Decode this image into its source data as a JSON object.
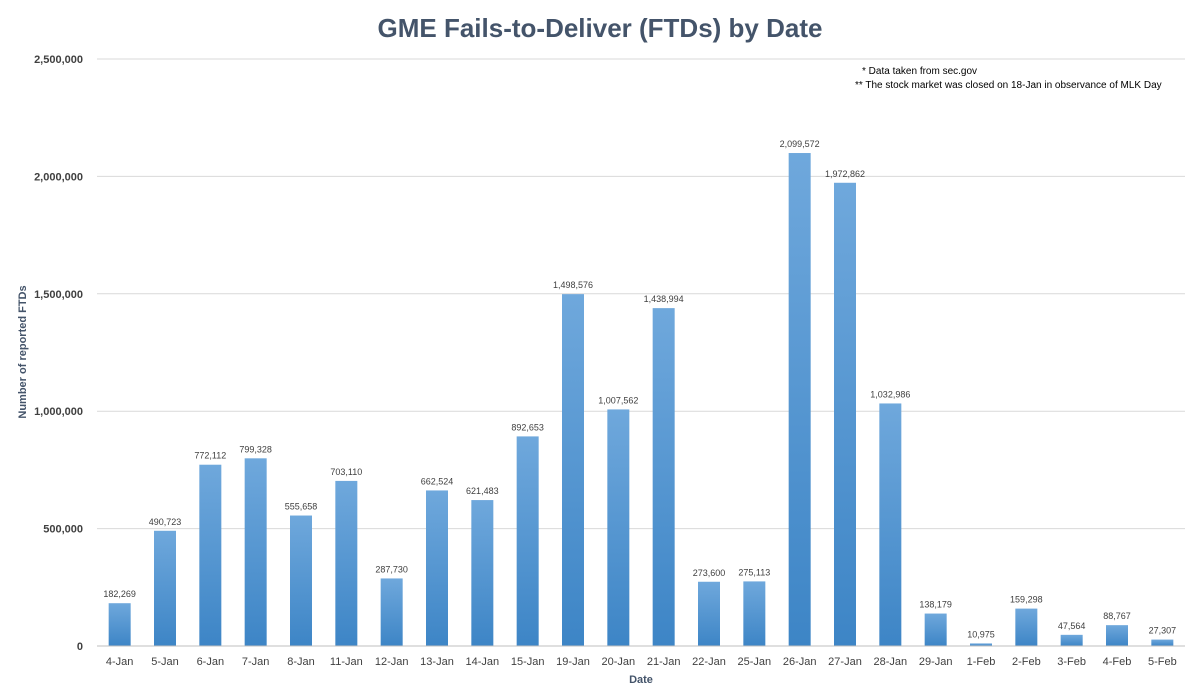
{
  "chart_data": {
    "type": "bar",
    "title": "GME Fails-to-Deliver (FTDs) by Date",
    "xlabel": "Date",
    "ylabel": "Number of reported FTDs",
    "ylim": [
      0,
      2500000
    ],
    "yticks": [
      0,
      500000,
      1000000,
      1500000,
      2000000,
      2500000
    ],
    "ytick_labels": [
      "0",
      "500,000",
      "1,000,000",
      "1,500,000",
      "2,000,000",
      "2,500,000"
    ],
    "grid": true,
    "categories": [
      "4-Jan",
      "5-Jan",
      "6-Jan",
      "7-Jan",
      "8-Jan",
      "11-Jan",
      "12-Jan",
      "13-Jan",
      "14-Jan",
      "15-Jan",
      "19-Jan",
      "20-Jan",
      "21-Jan",
      "22-Jan",
      "25-Jan",
      "26-Jan",
      "27-Jan",
      "28-Jan",
      "29-Jan",
      "1-Feb",
      "2-Feb",
      "3-Feb",
      "4-Feb",
      "5-Feb"
    ],
    "values": [
      182269,
      490723,
      772112,
      799328,
      555658,
      703110,
      287730,
      662524,
      621483,
      892653,
      1498576,
      1007562,
      1438994,
      273600,
      275113,
      2099572,
      1972862,
      1032986,
      138179,
      10975,
      159298,
      47564,
      88767,
      27307
    ],
    "data_labels": [
      "182,269",
      "490,723",
      "772,112",
      "799,328",
      "555,658",
      "703,110",
      "287,730",
      "662,524",
      "621,483",
      "892,653",
      "1,498,576",
      "1,007,562",
      "1,438,994",
      "273,600",
      "275,113",
      "2,099,572",
      "1,972,862",
      "1,032,986",
      "138,179",
      "10,975",
      "159,298",
      "47,564",
      "88,767",
      "27,307"
    ],
    "annotations": [
      "* Data  taken from sec.gov",
      "** The stock market was closed on 18-Jan in observance of MLK Day"
    ],
    "colors": {
      "bar_top": "#6FA8DC",
      "bar_bottom": "#3D85C6",
      "title": "#44546A"
    }
  }
}
